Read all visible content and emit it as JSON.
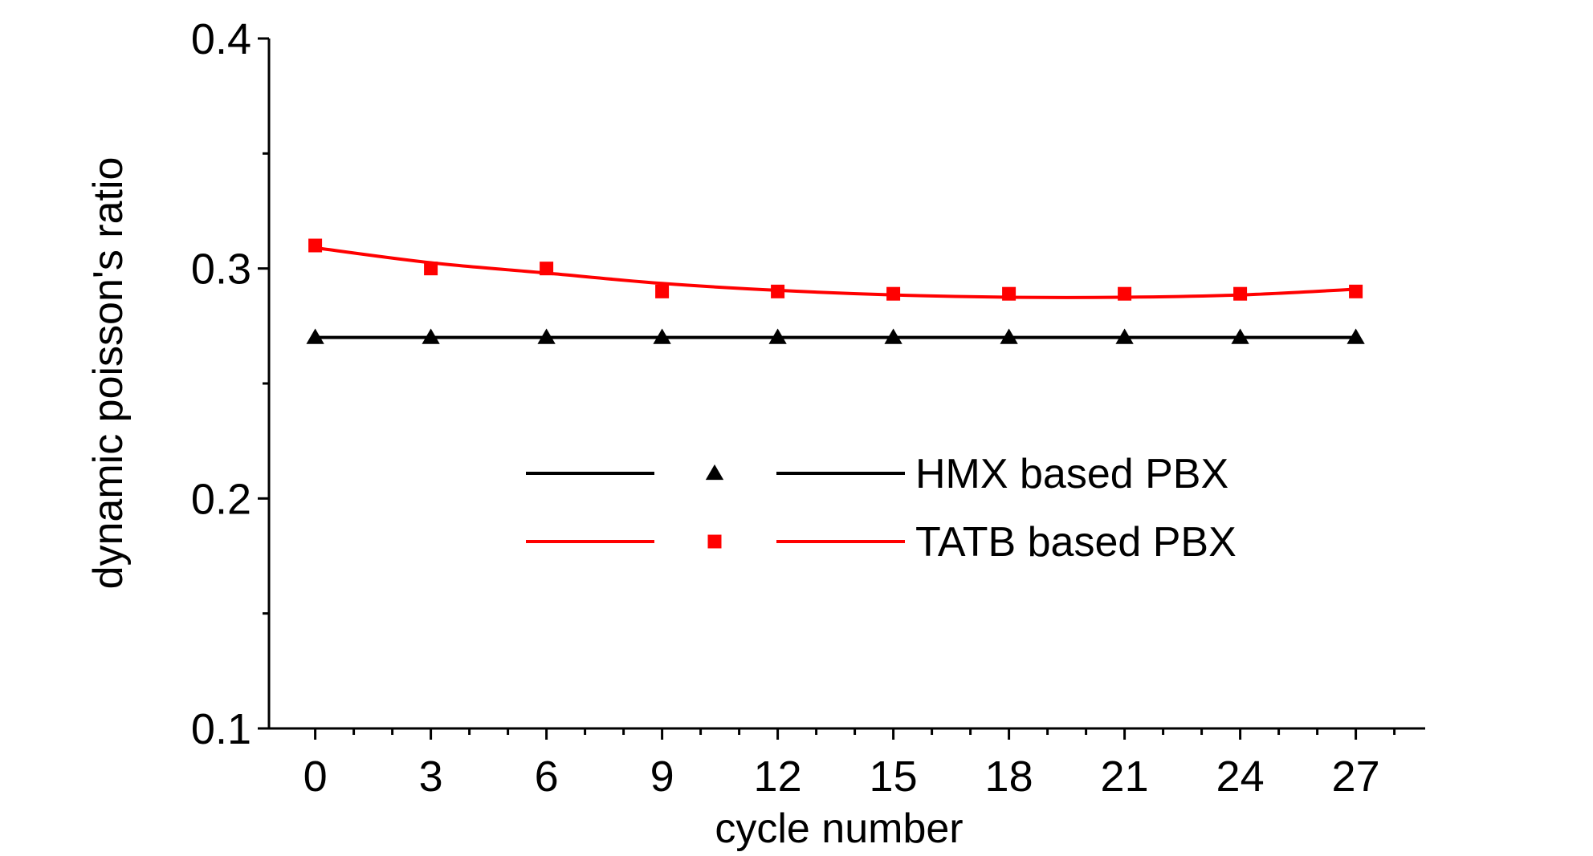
{
  "chart_data": {
    "type": "line",
    "title": "",
    "xlabel": "cycle number",
    "ylabel": "dynamic poisson's ratio",
    "xlim": [
      -1.2,
      28.8
    ],
    "ylim": [
      0.1,
      0.4
    ],
    "x": [
      0,
      3,
      6,
      9,
      12,
      15,
      18,
      21,
      24,
      27
    ],
    "x_ticks": [
      "0",
      "3",
      "6",
      "9",
      "12",
      "15",
      "18",
      "21",
      "24",
      "27"
    ],
    "y_ticks": [
      "0.1",
      "0.2",
      "0.3",
      "0.4"
    ],
    "grid": false,
    "legend_position": "center-right",
    "series": [
      {
        "name": "HMX based PBX",
        "color": "#000000",
        "marker": "triangle",
        "values": [
          0.27,
          0.27,
          0.27,
          0.27,
          0.27,
          0.27,
          0.27,
          0.27,
          0.27,
          0.27
        ],
        "fit": [
          0.27,
          0.27,
          0.27,
          0.27,
          0.27,
          0.27,
          0.27,
          0.27,
          0.27,
          0.27
        ]
      },
      {
        "name": "TATB based PBX",
        "color": "#ff0000",
        "marker": "square",
        "values": [
          0.31,
          0.3,
          0.3,
          0.29,
          0.29,
          0.289,
          0.289,
          0.289,
          0.289,
          0.29
        ],
        "fit": [
          0.309,
          0.3025,
          0.298,
          0.2935,
          0.2905,
          0.2885,
          0.2875,
          0.2875,
          0.2885,
          0.291
        ]
      }
    ]
  }
}
